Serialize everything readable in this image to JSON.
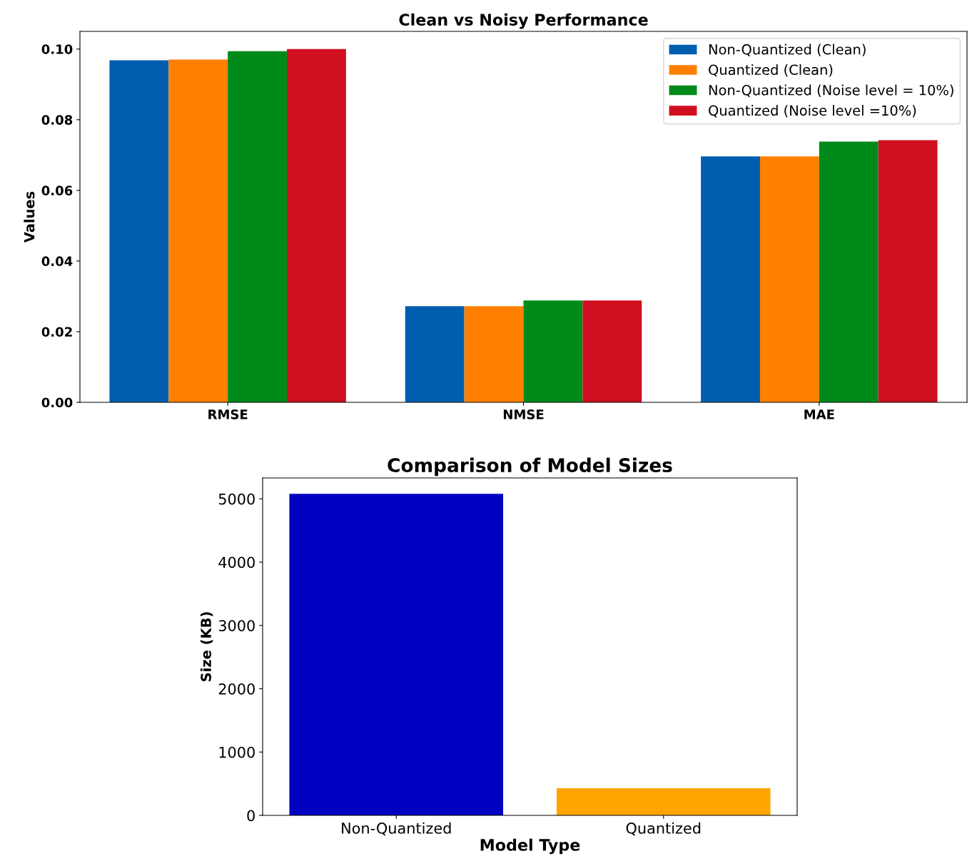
{
  "chart_data": [
    {
      "type": "bar",
      "title": "Clean vs Noisy Performance",
      "ylabel": "Values",
      "categories": [
        "RMSE",
        "NMSE",
        "MAE"
      ],
      "series": [
        {
          "name": "Non-Quantized (Clean)",
          "color": "#005eb0",
          "values": [
            0.0968,
            0.0272,
            0.0696
          ]
        },
        {
          "name": "Quantized (Clean)",
          "color": "#ff7f00",
          "values": [
            0.097,
            0.0272,
            0.0696
          ]
        },
        {
          "name": "Non-Quantized (Noise level = 10%)",
          "color": "#008a1a",
          "values": [
            0.0994,
            0.0288,
            0.0738
          ]
        },
        {
          "name": "Quantized (Noise level =10%)",
          "color": "#d01020",
          "values": [
            0.1,
            0.0288,
            0.0742
          ]
        }
      ],
      "ylim": [
        0,
        0.105
      ],
      "yticks": [
        {
          "value": 0,
          "label": "0.00"
        },
        {
          "value": 0.02,
          "label": "0.02"
        },
        {
          "value": 0.04,
          "label": "0.04"
        },
        {
          "value": 0.06,
          "label": "0.06"
        },
        {
          "value": 0.08,
          "label": "0.08"
        },
        {
          "value": 0.1,
          "label": "0.10"
        }
      ],
      "legend": "top right",
      "grid": false
    },
    {
      "type": "bar",
      "title": "Comparison of Model Sizes",
      "xlabel": "Model Type",
      "ylabel": "Size (KB)",
      "categories": [
        "Non-Quantized",
        "Quantized"
      ],
      "values": [
        5079,
        427
      ],
      "colors": [
        "#0000c0",
        "#ffa500"
      ],
      "ylim": [
        0,
        5330
      ],
      "yticks": [
        0,
        1000,
        2000,
        3000,
        4000,
        5000
      ],
      "grid": false
    }
  ]
}
